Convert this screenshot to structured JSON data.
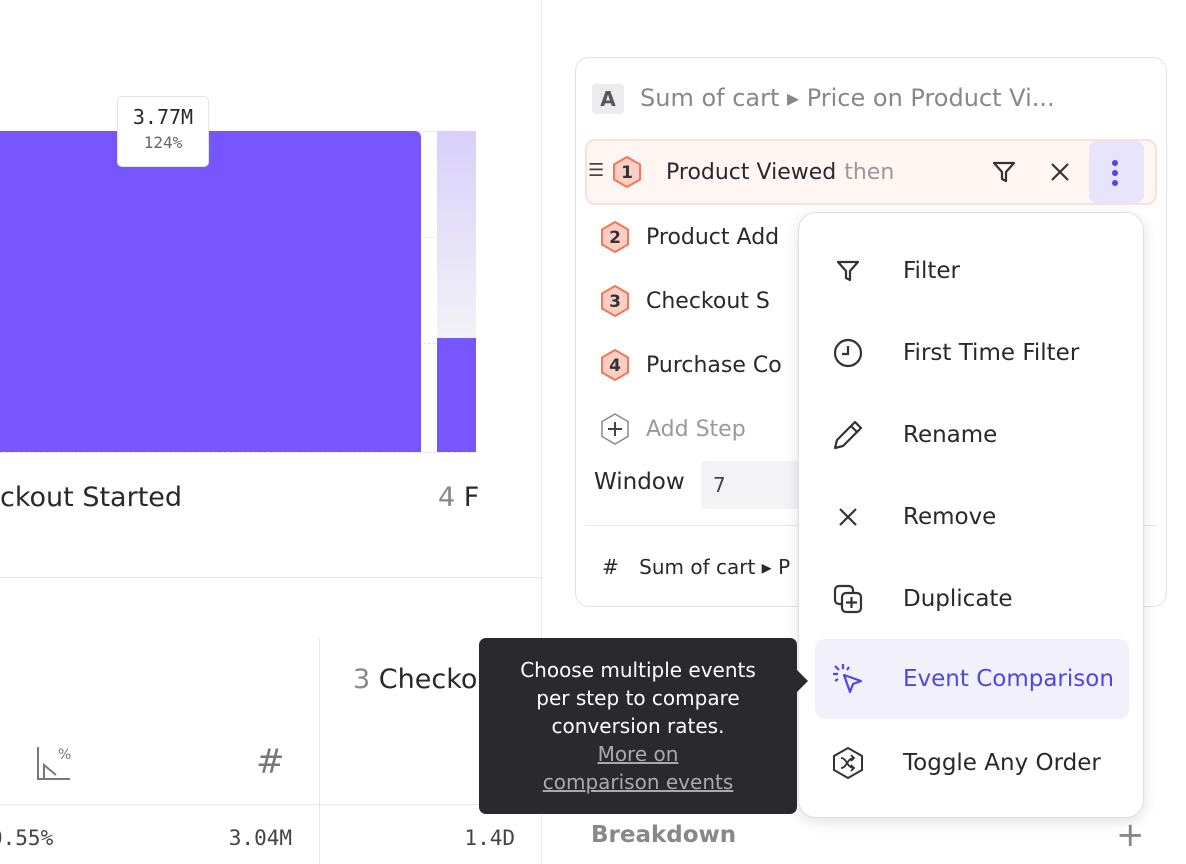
{
  "chart": {
    "bar_value": "3.77M",
    "bar_pct": "124%",
    "step3_label": "ckout Started",
    "step4_num": "4",
    "step4_label": "F",
    "bar_color": "#7856ff"
  },
  "table": {
    "header_step_num": "3",
    "header_step_label": "Checko",
    "values": [
      "0.55%",
      "3.04M",
      "1.4D"
    ]
  },
  "query": {
    "badge": "A",
    "title_a": "Sum of cart",
    "title_b": "Price on Product Vi...",
    "steps": [
      {
        "num": "1",
        "label": "Product Viewed",
        "suffix": "then"
      },
      {
        "num": "2",
        "label": "Product Add"
      },
      {
        "num": "3",
        "label": "Checkout S"
      },
      {
        "num": "4",
        "label": "Purchase Co"
      }
    ],
    "add_step": "Add Step",
    "window_label": "Window",
    "window_value": "7",
    "metric_a": "Sum of cart",
    "metric_b": "P",
    "breakdown": "Breakdown"
  },
  "menu": {
    "items": [
      {
        "label": "Filter",
        "icon": "filter-icon"
      },
      {
        "label": "First Time Filter",
        "icon": "clock-icon"
      },
      {
        "label": "Rename",
        "icon": "pencil-icon"
      },
      {
        "label": "Remove",
        "icon": "x-icon"
      },
      {
        "label": "Duplicate",
        "icon": "duplicate-icon"
      },
      {
        "label": "Event Comparison",
        "icon": "cursor-click-icon",
        "active": true
      },
      {
        "label": "Toggle Any Order",
        "icon": "shuffle-icon"
      }
    ],
    "accent": "#5046e5"
  },
  "tooltip": {
    "text": "Choose multiple events per step to compare conversion rates.",
    "link": "More on comparison events"
  }
}
